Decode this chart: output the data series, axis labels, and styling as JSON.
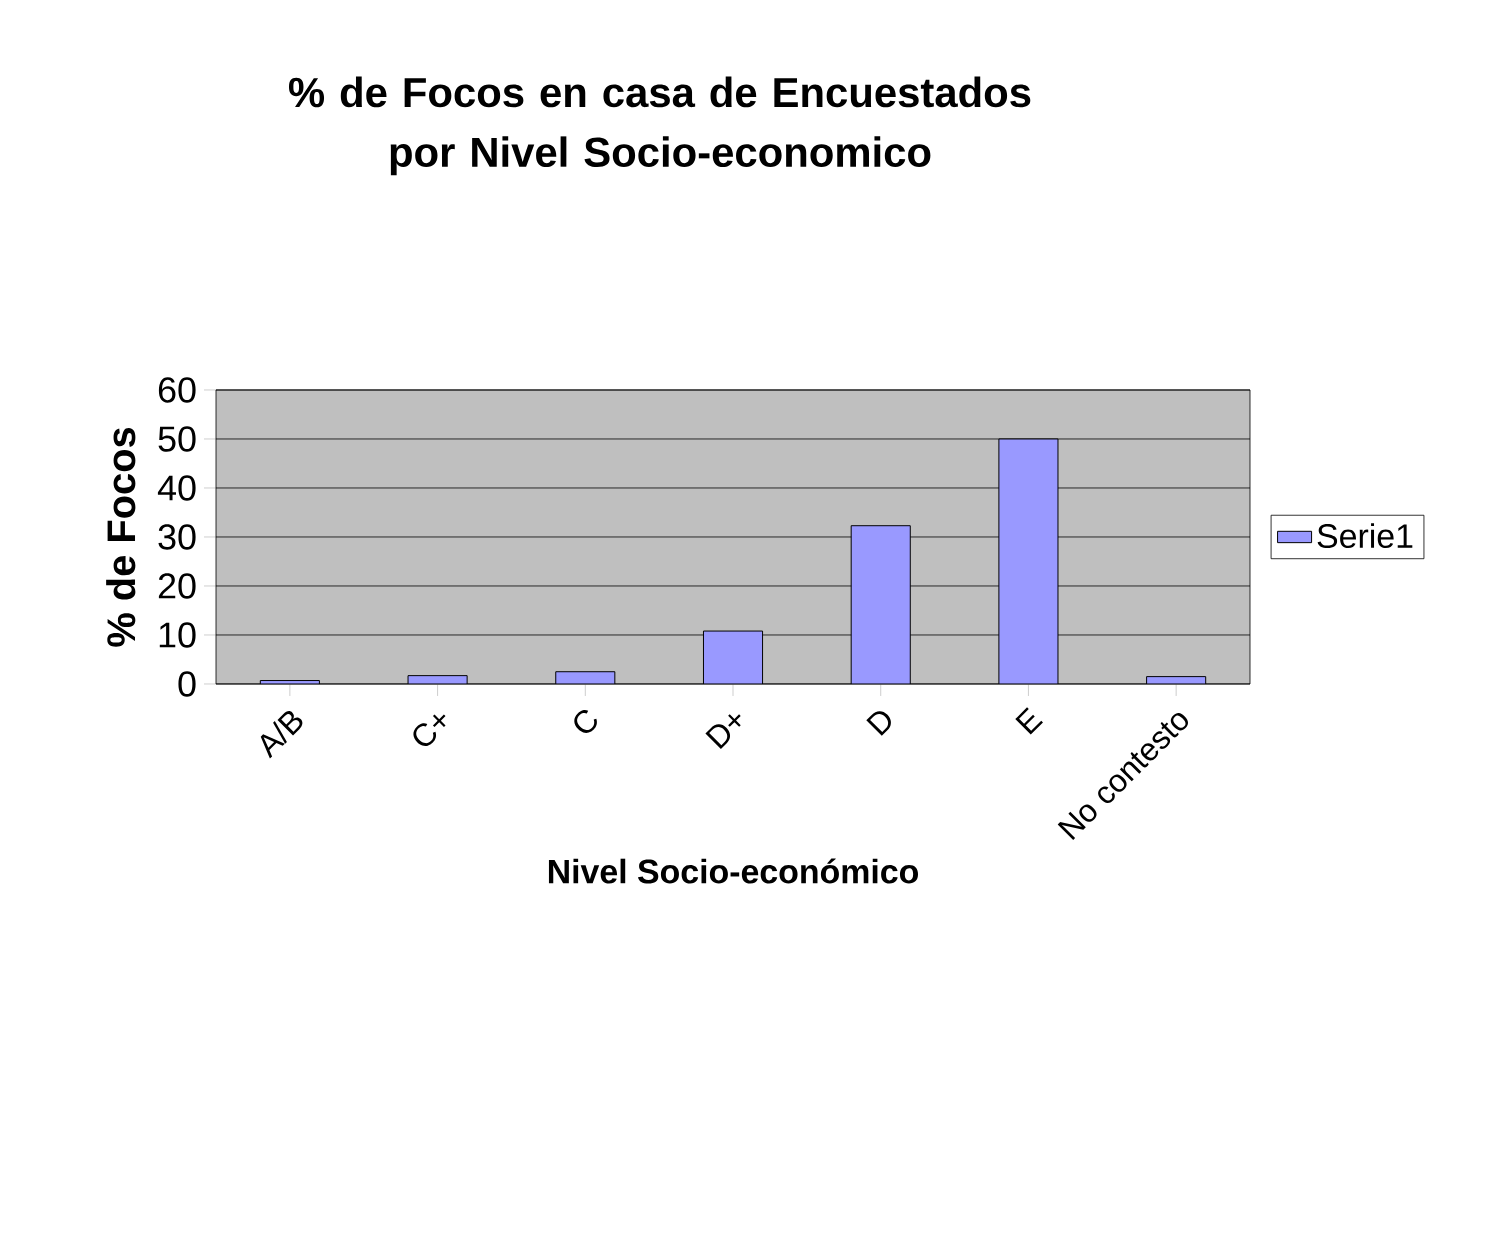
{
  "chart_data": {
    "type": "bar",
    "title": "% de Focos en casa de Encuestados  por Nivel Socio-economico",
    "xlabel": "Nivel Socio-económico",
    "ylabel": "% de Focos",
    "categories": [
      "A/B",
      "C+",
      "C",
      "D+",
      "D",
      "E",
      "No contesto"
    ],
    "series": [
      {
        "name": "Serie1",
        "color": "#9999ff",
        "values": [
          0.7,
          1.7,
          2.5,
          10.8,
          32.3,
          50,
          1.5
        ]
      }
    ],
    "ylim": [
      0,
      60
    ],
    "yticks": [
      0,
      10,
      20,
      30,
      40,
      50,
      60
    ],
    "grid": "y",
    "legend": "right"
  }
}
